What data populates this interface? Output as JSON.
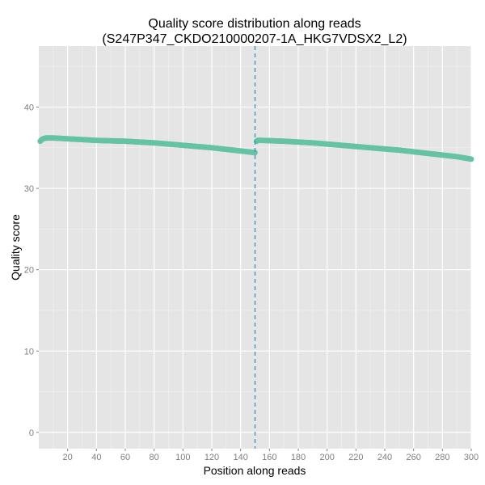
{
  "chart_data": {
    "type": "scatter",
    "title": "Quality score distribution along reads",
    "subtitle": "(S247P347_CKDO210000207-1A_HKG7VDSX2_L2)",
    "xlabel": "Position along reads",
    "ylabel": "Quality score",
    "xlim": [
      0,
      300
    ],
    "ylim": [
      -2,
      47.5
    ],
    "xticks": [
      20,
      40,
      60,
      80,
      100,
      120,
      140,
      160,
      180,
      200,
      220,
      240,
      260,
      280,
      300
    ],
    "yticks": [
      0,
      10,
      20,
      30,
      40
    ],
    "grid": true,
    "legend": "none",
    "vline": {
      "x": 150,
      "style": "dashed",
      "color": "#3a8fb7"
    },
    "series": [
      {
        "color": "#66c2a5",
        "x": [
          1,
          2,
          3,
          5,
          10,
          20,
          40,
          60,
          80,
          100,
          120,
          140,
          150,
          151,
          152,
          155,
          170,
          190,
          210,
          230,
          250,
          270,
          290,
          300
        ],
        "values": [
          35.8,
          36.0,
          36.1,
          36.2,
          36.2,
          36.1,
          35.9,
          35.8,
          35.6,
          35.3,
          35.0,
          34.6,
          34.4,
          35.8,
          35.9,
          35.9,
          35.8,
          35.6,
          35.3,
          35.0,
          34.7,
          34.3,
          33.9,
          33.6
        ]
      }
    ]
  }
}
